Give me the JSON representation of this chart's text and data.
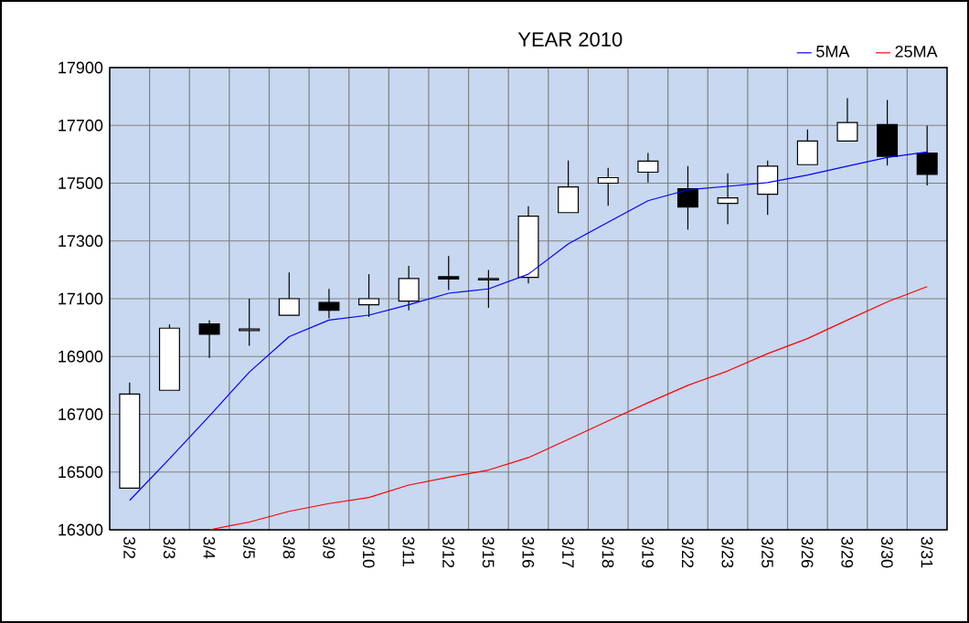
{
  "chart_data": {
    "type": "candlestick",
    "title": "YEAR 2010",
    "categories": [
      "3/2",
      "3/3",
      "3/4",
      "3/5",
      "3/8",
      "3/9",
      "3/10",
      "3/11",
      "3/12",
      "3/15",
      "3/16",
      "3/17",
      "3/18",
      "3/19",
      "3/22",
      "3/23",
      "3/25",
      "3/26",
      "3/29",
      "3/30",
      "3/31"
    ],
    "ohlc": [
      [
        16444,
        16810,
        16444,
        16770
      ],
      [
        16783,
        17011,
        16783,
        16998
      ],
      [
        17013,
        17026,
        16895,
        16977
      ],
      [
        16990,
        17100,
        16937,
        16995
      ],
      [
        17043,
        17191,
        17043,
        17100
      ],
      [
        17087,
        17134,
        17032,
        17060
      ],
      [
        17079,
        17185,
        17037,
        17100
      ],
      [
        17092,
        17214,
        17060,
        17170
      ],
      [
        17176,
        17248,
        17130,
        17168
      ],
      [
        17165,
        17200,
        17068,
        17170
      ],
      [
        17174,
        17420,
        17153,
        17386
      ],
      [
        17398,
        17578,
        17398,
        17487
      ],
      [
        17500,
        17553,
        17422,
        17519
      ],
      [
        17538,
        17604,
        17502,
        17576
      ],
      [
        17481,
        17559,
        17339,
        17417
      ],
      [
        17430,
        17534,
        17358,
        17449
      ],
      [
        17462,
        17578,
        17390,
        17559
      ],
      [
        17564,
        17686,
        17564,
        17646
      ],
      [
        17646,
        17794,
        17646,
        17710
      ],
      [
        17703,
        17788,
        17561,
        17593
      ],
      [
        17604,
        17699,
        17492,
        17530
      ]
    ],
    "series": [
      {
        "name": "5MA",
        "type": "line",
        "color": "#0000ff",
        "values": [
          16402,
          16546,
          16694,
          16846,
          16969,
          17026,
          17043,
          17079,
          17119,
          17134,
          17185,
          17290,
          17365,
          17439,
          17477,
          17489,
          17502,
          17528,
          17559,
          17589,
          17608
        ]
      },
      {
        "name": "25MA",
        "type": "line",
        "color": "#ff0000",
        "values": [
          null,
          null,
          16300,
          16327,
          16364,
          16391,
          16412,
          16455,
          16482,
          16507,
          16550,
          16613,
          16677,
          16740,
          16800,
          16850,
          16910,
          16962,
          17026,
          17089,
          17142
        ]
      }
    ],
    "ylim": [
      16300,
      17900
    ],
    "yticks": [
      16300,
      16500,
      16700,
      16900,
      17100,
      17300,
      17500,
      17700,
      17900
    ],
    "grid": true,
    "legend": "top right"
  }
}
